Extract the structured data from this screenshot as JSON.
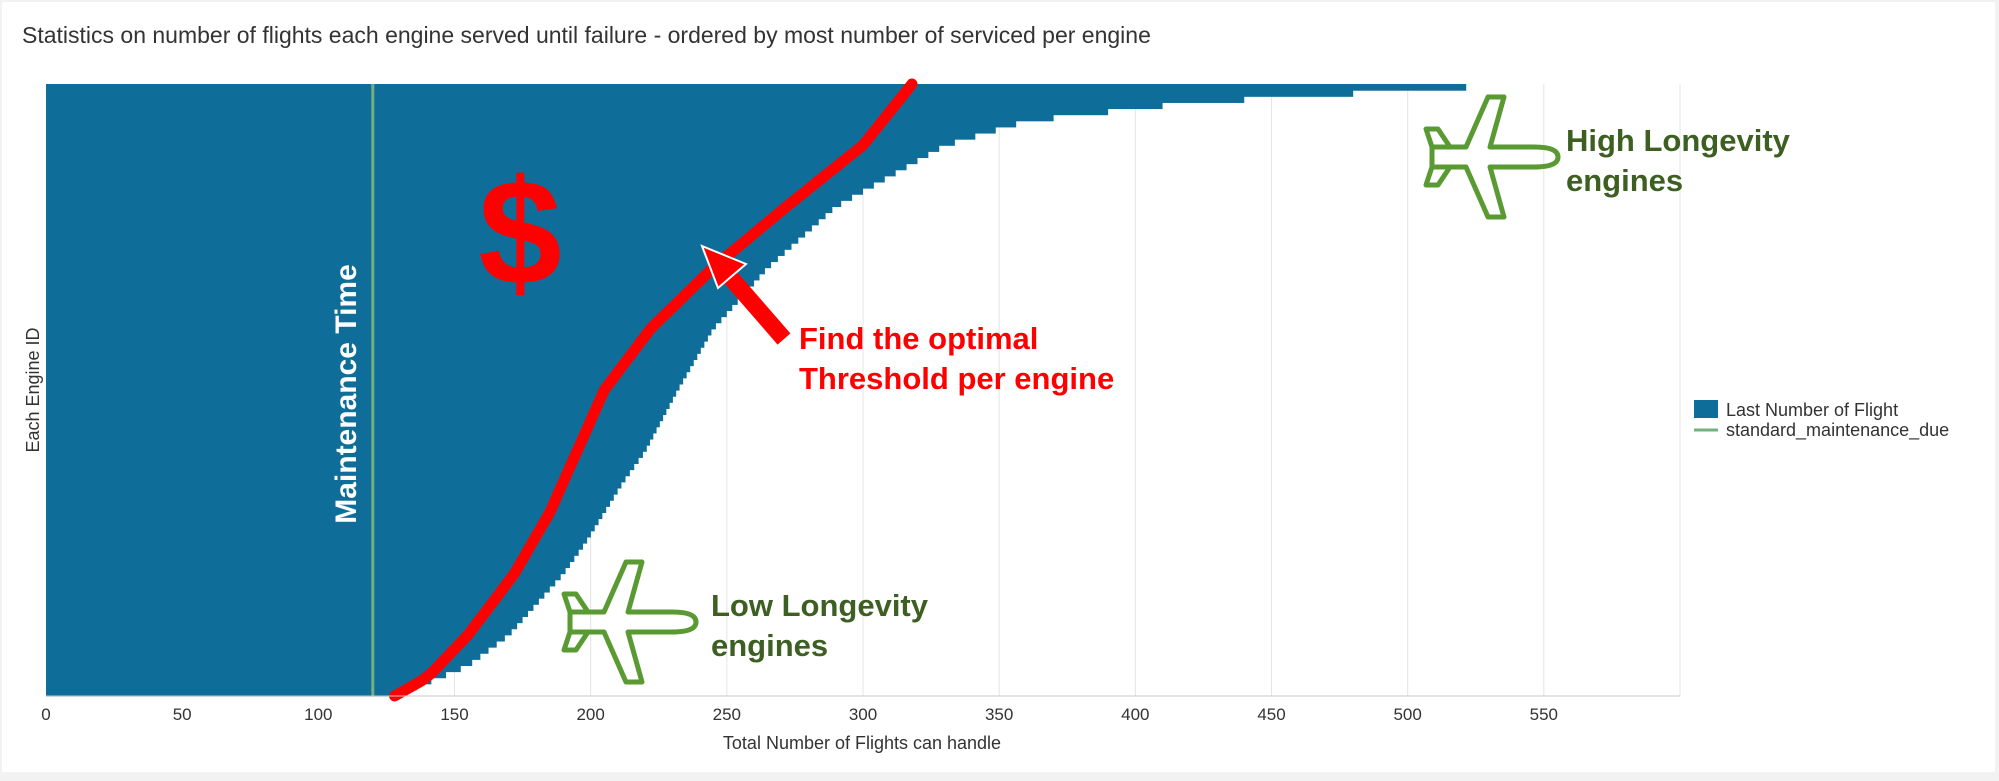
{
  "panel": {
    "title": "Statistics on number of flights each engine served until failure - ordered by most number of serviced per engine"
  },
  "colors": {
    "bars": "#0f6e99",
    "maintenance_line": "#74b07e",
    "annotation_red": "#ff0000",
    "annotation_green": "#3d5f22",
    "plane_outline": "#5a9a32",
    "gridline": "#e4e4e4"
  },
  "chart_data": {
    "type": "bar",
    "orientation": "horizontal",
    "title": "Statistics on number of flights each engine served until failure - ordered by most number of serviced per engine",
    "xlabel": "Total Number of Flights can handle",
    "ylabel": "Each Engine ID",
    "xlim": [
      0,
      600
    ],
    "x_ticks": [
      0,
      50,
      100,
      150,
      200,
      250,
      300,
      350,
      400,
      450,
      500,
      550
    ],
    "grid": "vertical",
    "legend_position": "right",
    "series": [
      {
        "name": "Last Number of Flight",
        "kind": "bars",
        "sorted": "descending",
        "engine_count": 100,
        "profile_rank_fraction": [
          0.0,
          0.01,
          0.03,
          0.06,
          0.1,
          0.15,
          0.2,
          0.3,
          0.4,
          0.5,
          0.6,
          0.65,
          0.7,
          0.75,
          0.8,
          0.85,
          0.9,
          0.95,
          1.0
        ],
        "profile_values": [
          543,
          500,
          420,
          360,
          330,
          310,
          290,
          265,
          245,
          232,
          220,
          212,
          205,
          198,
          190,
          180,
          170,
          155,
          128
        ]
      },
      {
        "name": "standard_maintenance_due",
        "kind": "line",
        "value": 120
      }
    ],
    "annotations": {
      "maintenance_label": "Maintenance Time",
      "dollar": "$",
      "optimal_threshold": [
        "Find the optimal",
        "Threshold per engine"
      ],
      "high_longevity": [
        "High Longevity",
        "engines"
      ],
      "low_longevity": [
        "Low Longevity",
        "engines"
      ],
      "threshold_curve_rank_fraction": [
        0.0,
        0.1,
        0.2,
        0.3,
        0.4,
        0.5,
        0.6,
        0.7,
        0.8,
        0.9,
        0.97,
        1.0
      ],
      "threshold_curve_values": [
        318,
        300,
        272,
        245,
        222,
        205,
        195,
        185,
        172,
        155,
        140,
        128
      ]
    }
  }
}
